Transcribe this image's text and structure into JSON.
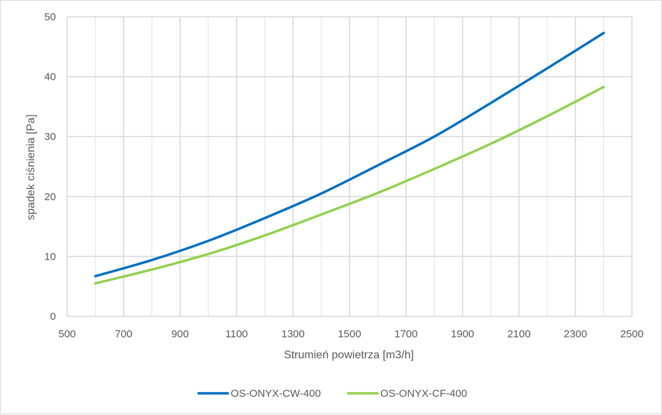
{
  "chart_data": {
    "type": "line",
    "title": "",
    "xlabel": "Strumień powietrza [m3/h]",
    "ylabel": "spadek ciśnienia [Pa]",
    "xlim": [
      500,
      2500
    ],
    "ylim": [
      0,
      50
    ],
    "x_ticks": [
      500,
      700,
      900,
      1100,
      1300,
      1500,
      1700,
      1900,
      2100,
      2300,
      2500
    ],
    "y_ticks": [
      0,
      10,
      20,
      30,
      40,
      50
    ],
    "grid": true,
    "legend_position": "bottom",
    "series": [
      {
        "name": "OS-ONYX-CW-400",
        "color": "#0070c0",
        "x": [
          600,
          800,
          1000,
          1200,
          1400,
          1600,
          1800,
          2000,
          2200,
          2400
        ],
        "y": [
          6.7,
          9.4,
          12.6,
          16.4,
          20.5,
          25.2,
          30.0,
          35.6,
          41.4,
          47.3
        ]
      },
      {
        "name": "OS-ONYX-CF-400",
        "color": "#92d050",
        "x": [
          600,
          800,
          1000,
          1200,
          1400,
          1600,
          1800,
          2000,
          2200,
          2400
        ],
        "y": [
          5.5,
          7.8,
          10.4,
          13.5,
          17.0,
          20.6,
          24.6,
          28.8,
          33.4,
          38.3
        ]
      }
    ]
  }
}
